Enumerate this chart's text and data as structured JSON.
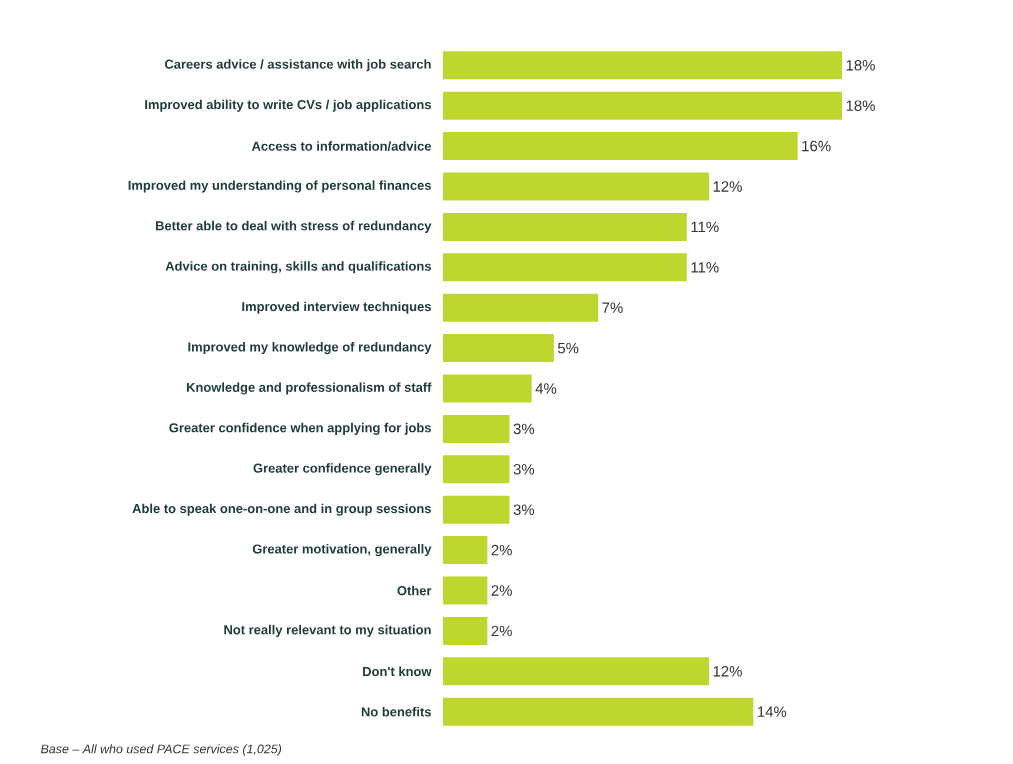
{
  "chart_data": {
    "type": "bar",
    "orientation": "horizontal",
    "categories": [
      "Careers advice / assistance with job search",
      "Improved ability to write CVs / job applications",
      "Access to information/advice",
      "Improved my understanding of personal finances",
      "Better able to deal with stress of redundancy",
      "Advice on training, skills and qualifications",
      "Improved interview techniques",
      "Improved my knowledge of redundancy",
      "Knowledge and professionalism of staff",
      "Greater confidence when applying for jobs",
      "Greater confidence generally",
      "Able to speak one-on-one and in group sessions",
      "Greater motivation, generally",
      "Other",
      "Not really relevant to my situation",
      "Don't know",
      "No benefits"
    ],
    "values": [
      18,
      18,
      16,
      12,
      11,
      11,
      7,
      5,
      4,
      3,
      3,
      3,
      2,
      2,
      2,
      12,
      14
    ],
    "value_labels": [
      "18%",
      "18%",
      "16%",
      "12%",
      "11%",
      "11%",
      "7%",
      "5%",
      "4%",
      "3%",
      "3%",
      "3%",
      "2%",
      "2%",
      "2%",
      "12%",
      "14%"
    ],
    "color": "#bfd62f",
    "annotations": [
      "Base – All who used PACE services (1,025)"
    ]
  }
}
